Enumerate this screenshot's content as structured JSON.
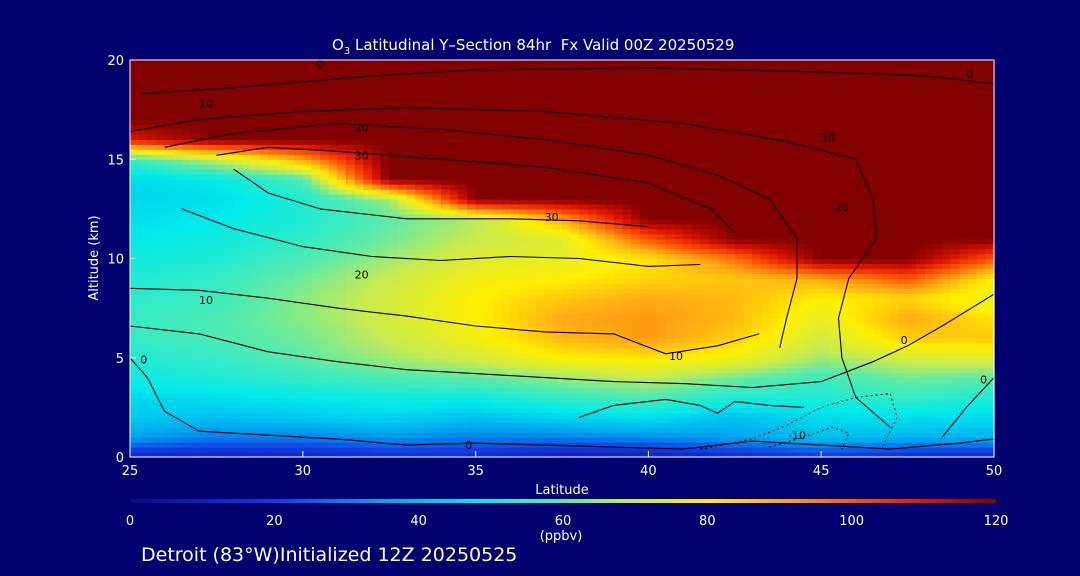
{
  "chart_data": {
    "type": "heatmap",
    "title_main": "O",
    "title_sub": "3",
    "title_rest": " Latitudinal Y–Section 84hr  Fx Valid 00Z 20250529",
    "xlabel": "Latitude",
    "ylabel": "Altitude (km)",
    "xlim": [
      25,
      50
    ],
    "ylim": [
      0,
      20
    ],
    "x_ticks": [
      "25",
      "30",
      "35",
      "40",
      "45",
      "50"
    ],
    "y_ticks": [
      "0",
      "5",
      "10",
      "15",
      "20"
    ],
    "colorbar": {
      "range": [
        0,
        120
      ],
      "ticks": [
        "0",
        "20",
        "40",
        "60",
        "80",
        "100",
        "120"
      ],
      "unit_label": "(ppbv)"
    },
    "footer": "Detroit (83°W)Initialized 12Z 20250525",
    "field_ozone_ppbv": {
      "lat": [
        25,
        27.5,
        30,
        32.5,
        35,
        37.5,
        40,
        42.5,
        45,
        47.5,
        50
      ],
      "alt_km": [
        0,
        1,
        2,
        3,
        4,
        5,
        6,
        7,
        8,
        9,
        10,
        11,
        12,
        13,
        14,
        15,
        16,
        17,
        18,
        19,
        20
      ],
      "rows": [
        [
          12,
          10,
          11,
          15,
          14,
          8,
          8,
          14,
          18,
          14,
          12
        ],
        [
          35,
          30,
          30,
          33,
          30,
          30,
          32,
          35,
          40,
          38,
          38
        ],
        [
          42,
          40,
          42,
          44,
          40,
          44,
          46,
          40,
          45,
          46,
          45
        ],
        [
          45,
          46,
          48,
          50,
          50,
          55,
          58,
          52,
          52,
          55,
          52
        ],
        [
          50,
          52,
          55,
          58,
          60,
          65,
          70,
          62,
          56,
          62,
          60
        ],
        [
          52,
          55,
          60,
          66,
          72,
          80,
          82,
          78,
          66,
          72,
          74
        ],
        [
          55,
          58,
          62,
          70,
          78,
          88,
          92,
          85,
          72,
          85,
          86
        ],
        [
          55,
          58,
          64,
          72,
          80,
          90,
          92,
          88,
          76,
          90,
          82
        ],
        [
          54,
          56,
          64,
          72,
          80,
          86,
          90,
          88,
          80,
          84,
          76
        ],
        [
          52,
          55,
          62,
          70,
          78,
          80,
          84,
          86,
          90,
          100,
          80
        ],
        [
          50,
          52,
          58,
          66,
          74,
          76,
          82,
          96,
          120,
          120,
          100
        ],
        [
          48,
          50,
          54,
          62,
          70,
          74,
          100,
          120,
          120,
          120,
          120
        ],
        [
          46,
          48,
          52,
          60,
          68,
          90,
          120,
          120,
          120,
          120,
          120
        ],
        [
          44,
          46,
          52,
          66,
          120,
          120,
          120,
          120,
          120,
          120,
          120
        ],
        [
          45,
          48,
          58,
          120,
          120,
          120,
          120,
          120,
          120,
          120,
          120
        ],
        [
          55,
          70,
          90,
          120,
          120,
          120,
          120,
          120,
          120,
          120,
          120
        ],
        [
          110,
          120,
          120,
          120,
          120,
          120,
          120,
          120,
          120,
          120,
          120
        ],
        [
          120,
          120,
          120,
          120,
          120,
          120,
          120,
          120,
          120,
          120,
          120
        ],
        [
          120,
          120,
          120,
          120,
          120,
          120,
          120,
          120,
          120,
          120,
          120
        ],
        [
          120,
          120,
          120,
          120,
          120,
          120,
          120,
          120,
          120,
          120,
          120
        ],
        [
          120,
          120,
          120,
          120,
          120,
          120,
          120,
          120,
          120,
          120,
          120
        ]
      ]
    },
    "contours": [
      {
        "value": "0",
        "solid": true,
        "points": [
          [
            25.3,
            18.3
          ],
          [
            28,
            18.6
          ],
          [
            32,
            19.2
          ],
          [
            35,
            19.5
          ],
          [
            40,
            19.6
          ],
          [
            45,
            19.4
          ],
          [
            48,
            19.2
          ],
          [
            50,
            18.8
          ]
        ]
      },
      {
        "value": "10",
        "solid": true,
        "points": [
          [
            25,
            16.4
          ],
          [
            27,
            17
          ],
          [
            30,
            17.4
          ],
          [
            33,
            17.6
          ],
          [
            37,
            17.4
          ],
          [
            41,
            16.8
          ],
          [
            44,
            15.9
          ],
          [
            46,
            15
          ],
          [
            46.5,
            13
          ],
          [
            46.6,
            11
          ],
          [
            45.8,
            9
          ],
          [
            45.5,
            7
          ],
          [
            45.6,
            5
          ],
          [
            46,
            3
          ],
          [
            47,
            1.5
          ]
        ]
      },
      {
        "value": "20",
        "solid": true,
        "points": [
          [
            26,
            15.6
          ],
          [
            28,
            16.3
          ],
          [
            31,
            16.8
          ],
          [
            34,
            16.5
          ],
          [
            37,
            16
          ],
          [
            40,
            15.2
          ],
          [
            42,
            14.2
          ],
          [
            43.5,
            13
          ],
          [
            44.3,
            11
          ],
          [
            44.3,
            9
          ],
          [
            44,
            7
          ],
          [
            43.8,
            5.5
          ]
        ]
      },
      {
        "value": "30",
        "solid": true,
        "points": [
          [
            27.5,
            15.2
          ],
          [
            29,
            15.6
          ],
          [
            31,
            15.4
          ],
          [
            34,
            15
          ],
          [
            37,
            14.6
          ],
          [
            40,
            13.8
          ],
          [
            41.8,
            12.5
          ],
          [
            42.5,
            11.3
          ]
        ]
      },
      {
        "value": "10",
        "solid": true,
        "points": [
          [
            25,
            8.5
          ],
          [
            27,
            8.4
          ],
          [
            29,
            8
          ],
          [
            31,
            7.5
          ],
          [
            33,
            7.1
          ],
          [
            35,
            6.6
          ],
          [
            37,
            6.3
          ],
          [
            39,
            6.2
          ],
          [
            40.5,
            5.2
          ],
          [
            42,
            5.6
          ],
          [
            43.2,
            6.2
          ]
        ]
      },
      {
        "value": "20",
        "solid": true,
        "points": [
          [
            26.5,
            12.5
          ],
          [
            28,
            11.5
          ],
          [
            30,
            10.6
          ],
          [
            32,
            10.1
          ],
          [
            34,
            9.9
          ],
          [
            36,
            10.1
          ],
          [
            38,
            10
          ],
          [
            40,
            9.6
          ],
          [
            41.5,
            9.7
          ]
        ]
      },
      {
        "value": "30",
        "solid": true,
        "points": [
          [
            28,
            14.5
          ],
          [
            29,
            13.3
          ],
          [
            30.5,
            12.5
          ],
          [
            33,
            12
          ],
          [
            36,
            12
          ],
          [
            38,
            11.9
          ],
          [
            40,
            11.6
          ]
        ]
      },
      {
        "value": "0",
        "solid": true,
        "points": [
          [
            25,
            6.6
          ],
          [
            27,
            6.2
          ],
          [
            29,
            5.3
          ],
          [
            31,
            4.8
          ],
          [
            33,
            4.4
          ],
          [
            35,
            4.2
          ],
          [
            37,
            4
          ],
          [
            39,
            3.8
          ],
          [
            41,
            3.7
          ],
          [
            43,
            3.5
          ],
          [
            45,
            3.8
          ],
          [
            46.5,
            4.8
          ],
          [
            47.5,
            5.6
          ],
          [
            48.5,
            6.6
          ],
          [
            50,
            8.2
          ]
        ]
      },
      {
        "value": "0",
        "solid": true,
        "points": [
          [
            25,
            5
          ],
          [
            25.5,
            4
          ],
          [
            26,
            2.3
          ],
          [
            27,
            1.3
          ],
          [
            29,
            1.1
          ],
          [
            31,
            0.9
          ],
          [
            33,
            0.6
          ],
          [
            35,
            0.7
          ],
          [
            37,
            0.6
          ],
          [
            39,
            0.5
          ],
          [
            41,
            0.4
          ],
          [
            43,
            0.8
          ],
          [
            45,
            0.6
          ],
          [
            47,
            0.4
          ],
          [
            49,
            0.7
          ],
          [
            50,
            0.9
          ]
        ]
      },
      {
        "value": "0",
        "solid": true,
        "points": [
          [
            38,
            2
          ],
          [
            39,
            2.6
          ],
          [
            40.5,
            2.9
          ],
          [
            41.5,
            2.6
          ],
          [
            42,
            2.2
          ],
          [
            42.5,
            2.8
          ],
          [
            43.5,
            2.6
          ],
          [
            44.5,
            2.5
          ]
        ]
      },
      {
        "value": "0",
        "solid": true,
        "points": [
          [
            48.5,
            1
          ],
          [
            49.2,
            2.5
          ],
          [
            50,
            4
          ]
        ]
      },
      {
        "value": "-10",
        "solid": false,
        "points": [
          [
            41.5,
            0.4
          ],
          [
            43,
            0.9
          ],
          [
            44,
            1.6
          ],
          [
            45,
            2.5
          ],
          [
            46,
            3
          ],
          [
            47,
            3.2
          ],
          [
            47.2,
            2
          ],
          [
            46.8,
            0.6
          ]
        ]
      },
      {
        "value": "",
        "solid": false,
        "points": [
          [
            43.5,
            0.5
          ],
          [
            44.5,
            1
          ],
          [
            45.3,
            1.5
          ],
          [
            45.8,
            1.2
          ],
          [
            45.6,
            0.4
          ]
        ]
      }
    ],
    "contour_labels": [
      {
        "text": "0",
        "x": 30.5,
        "y": 19.8
      },
      {
        "text": "0",
        "x": 49.3,
        "y": 19.3
      },
      {
        "text": "10",
        "x": 27.2,
        "y": 17.8
      },
      {
        "text": "10",
        "x": 45.2,
        "y": 16.1
      },
      {
        "text": "20",
        "x": 31.7,
        "y": 16.6
      },
      {
        "text": "30",
        "x": 31.7,
        "y": 15.2
      },
      {
        "text": "30",
        "x": 37.2,
        "y": 12.1
      },
      {
        "text": "20",
        "x": 45.6,
        "y": 12.6
      },
      {
        "text": "20",
        "x": 31.7,
        "y": 9.2
      },
      {
        "text": "10",
        "x": 27.2,
        "y": 7.9
      },
      {
        "text": "10",
        "x": 40.8,
        "y": 5.1
      },
      {
        "text": "0",
        "x": 25.4,
        "y": 4.9
      },
      {
        "text": "0",
        "x": 47.4,
        "y": 5.9
      },
      {
        "text": "0",
        "x": 49.7,
        "y": 3.9
      },
      {
        "text": "0",
        "x": 34.8,
        "y": 0.6
      },
      {
        "text": "-10",
        "x": 44.3,
        "y": 1.1
      }
    ]
  }
}
